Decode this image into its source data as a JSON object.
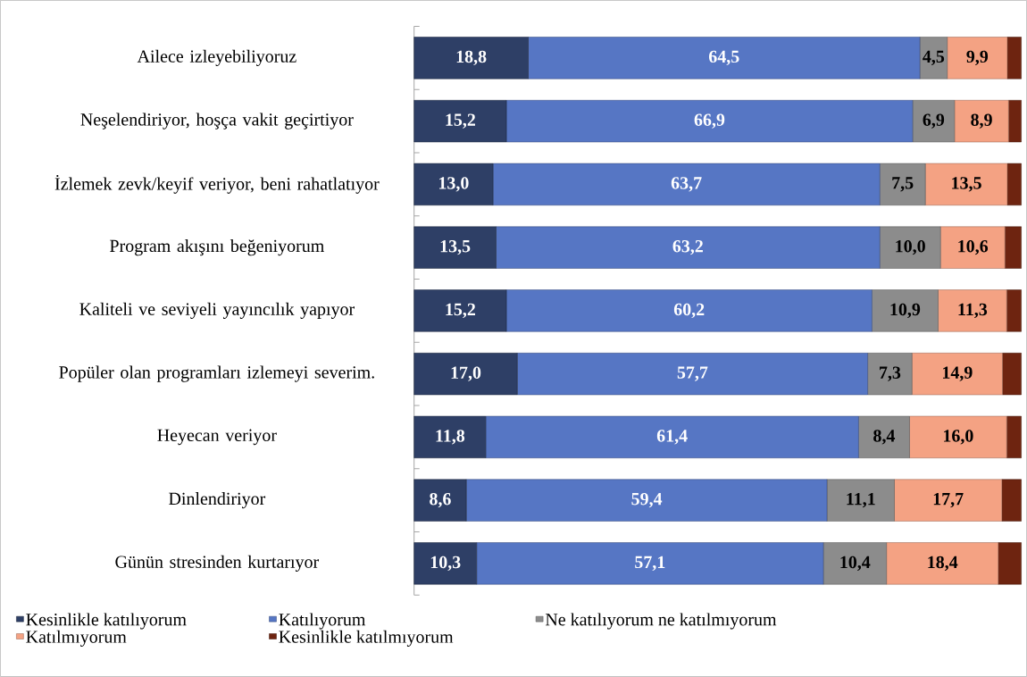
{
  "chart_data": {
    "type": "bar",
    "orientation": "horizontal",
    "stacked": true,
    "legend": "bottom",
    "tick_labels": "y",
    "categories": [
      "Ailece izleyebiliyoruz",
      "Neşelendiriyor, hoşça vakit geçirtiyor",
      "İzlemek zevk/keyif veriyor, beni rahatlatıyor",
      "Program akışını beğeniyorum",
      "Kaliteli ve seviyeli yayıncılık yapıyor",
      "Popüler olan programları izlemeyi severim.",
      "Heyecan veriyor",
      "Dinlendiriyor",
      "Günün stresinden kurtarıyor"
    ],
    "series": [
      {
        "name": "Kesinlikle katılıyorum",
        "color": "#2e3f66",
        "values": [
          18.8,
          15.2,
          13.0,
          13.5,
          15.2,
          17.0,
          11.8,
          8.6,
          10.3
        ],
        "value_labels": [
          "18,8",
          "15,2",
          "13,0",
          "13,5",
          "15,2",
          "17,0",
          "11,8",
          "8,6",
          "10,3"
        ]
      },
      {
        "name": "Katılıyorum",
        "color": "#5676c4",
        "values": [
          64.5,
          66.9,
          63.7,
          63.2,
          60.2,
          57.7,
          61.4,
          59.4,
          57.1
        ],
        "value_labels": [
          "64,5",
          "66,9",
          "63,7",
          "63,2",
          "60,2",
          "57,7",
          "61,4",
          "59,4",
          "57,1"
        ]
      },
      {
        "name": "Ne katılıyorum ne katılmıyorum",
        "color": "#8c8c8c",
        "values": [
          4.5,
          6.9,
          7.5,
          10.0,
          10.9,
          7.3,
          8.4,
          11.1,
          10.4
        ],
        "value_labels": [
          "4,5",
          "6,9",
          "7,5",
          "10,0",
          "10,9",
          "7,3",
          "8,4",
          "11,1",
          "10,4"
        ]
      },
      {
        "name": "Katılmıyorum",
        "color": "#f4a283",
        "values": [
          9.9,
          8.9,
          13.5,
          10.6,
          11.3,
          14.9,
          16.0,
          17.7,
          18.4
        ],
        "value_labels": [
          "9,9",
          "8,9",
          "13,5",
          "10,6",
          "11,3",
          "14,9",
          "16,0",
          "17,7",
          "18,4"
        ]
      },
      {
        "name": "Kesinlikle katılmıyorum",
        "color": "#6e2410",
        "values": [
          2.3,
          2.1,
          2.3,
          2.7,
          2.4,
          3.1,
          2.4,
          3.2,
          3.8
        ],
        "value_labels": [
          null,
          null,
          null,
          null,
          null,
          null,
          null,
          null,
          null
        ]
      }
    ]
  }
}
